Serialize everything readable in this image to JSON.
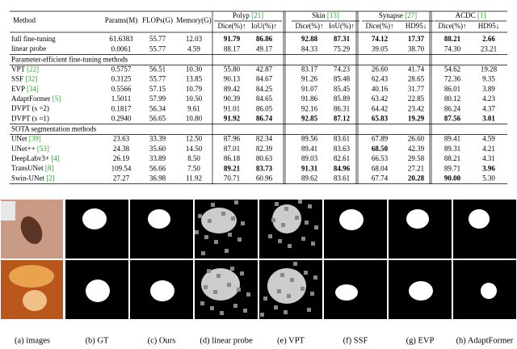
{
  "table": {
    "columns": [
      "Method",
      "Params(M)",
      "FLOPs(G)",
      "Memory(G)"
    ],
    "groups": [
      {
        "name": "Polyp",
        "cite": "[21]"
      },
      {
        "name": "Skin",
        "cite": "[13]"
      },
      {
        "name": "Synapse",
        "cite": "[27]"
      },
      {
        "name": "ACDC",
        "cite": "[1]"
      }
    ],
    "subheaders": [
      "Dice(%)↑",
      "IoU(%)↑",
      "Dice(%)↑",
      "IoU(%)↑",
      "Dice(%)↑",
      "HD95↓",
      "Dice(%)↑",
      "HD95↓"
    ],
    "sections": [
      {
        "rows": [
          {
            "name": "full fine-tuning",
            "cells": [
              "61.6383",
              "55.77",
              "12.03",
              "91.79",
              "86.86",
              "92.88",
              "87.31",
              "74.12",
              "17.37",
              "88.21",
              "2.66"
            ],
            "bold": [
              3,
              4,
              5,
              6,
              7,
              8,
              9,
              10
            ]
          },
          {
            "name": "linear probe",
            "cells": [
              "0.0061",
              "55.77",
              "4.59",
              "88.17",
              "49.17",
              "84.33",
              "75.29",
              "39.05",
              "38.70",
              "74.30",
              "23.21"
            ],
            "bold": []
          }
        ]
      },
      {
        "title": "Parameter-efficient fine-tuning methods",
        "rows": [
          {
            "name": "VPT",
            "cite": "[22]",
            "cells": [
              "0.5757",
              "56.51",
              "10.30",
              "55.80",
              "42.87",
              "83.17",
              "74.23",
              "26.60",
              "41.74",
              "54.62",
              "19.28"
            ],
            "bold": []
          },
          {
            "name": "SSF",
            "cite": "[32]",
            "cells": [
              "0.3125",
              "55.77",
              "13.85",
              "90.13",
              "84.67",
              "91.26",
              "85.48",
              "62.43",
              "28.65",
              "72.36",
              "9.35"
            ],
            "bold": []
          },
          {
            "name": "EVP",
            "cite": "[34]",
            "cells": [
              "0.5566",
              "57.15",
              "10.79",
              "89.42",
              "84.25",
              "91.07",
              "85.45",
              "40.16",
              "31.77",
              "86.01",
              "3.89"
            ],
            "bold": []
          },
          {
            "name": "AdaptFormer",
            "cite": "[5]",
            "cells": [
              "1.5011",
              "57.99",
              "10.50",
              "90.39",
              "84.65",
              "91.86",
              "85.89",
              "63.42",
              "22.85",
              "80.12",
              "4.23"
            ],
            "bold": []
          },
          {
            "name": "DVPT (s =2)",
            "cells": [
              "0.1817",
              "56.34",
              "9.61",
              "91.01",
              "86.05",
              "92.16",
              "86.31",
              "64.42",
              "23.42",
              "86.24",
              "4.37"
            ],
            "bold": []
          },
          {
            "name": "DVPT (s =1)",
            "cells": [
              "0.2940",
              "56.65",
              "10.80",
              "91.92",
              "86.74",
              "92.85",
              "87.12",
              "65.83",
              "19.29",
              "87.56",
              "3.01"
            ],
            "bold": [
              3,
              4,
              5,
              6,
              7,
              8,
              9,
              10
            ]
          }
        ]
      },
      {
        "title": "SOTA segmentation methods",
        "rows": [
          {
            "name": "UNet",
            "cite": "[39]",
            "cells": [
              "23.63",
              "33.39",
              "12.50",
              "87.96",
              "82.34",
              "89.56",
              "83.61",
              "67.89",
              "26.60",
              "89.41",
              "4.59"
            ],
            "bold": []
          },
          {
            "name": "UNet++",
            "cite": "[53]",
            "cells": [
              "24.38",
              "35.60",
              "14.50",
              "87.01",
              "82.39",
              "89.41",
              "83.63",
              "68.50",
              "42.39",
              "89.31",
              "4.21"
            ],
            "bold": [
              7
            ]
          },
          {
            "name": "DeepLabv3+",
            "cite": "[4]",
            "cells": [
              "26.19",
              "33.89",
              "8.50",
              "86.18",
              "80.63",
              "89.03",
              "82.61",
              "66.53",
              "29.58",
              "88.21",
              "4.31"
            ],
            "bold": []
          },
          {
            "name": "TransUNet",
            "cite": "[8]",
            "cells": [
              "109.54",
              "56.66",
              "7.50",
              "89.21",
              "83.73",
              "91.31",
              "84.96",
              "68.04",
              "27.21",
              "89.71",
              "3.96"
            ],
            "bold": [
              3,
              4,
              5,
              6,
              10
            ]
          },
          {
            "name": "Swin-UNet",
            "cite": "[2]",
            "cells": [
              "27.27",
              "36.98",
              "11.92",
              "70.71",
              "60.96",
              "89.62",
              "83.61",
              "67.74",
              "20.28",
              "90.00",
              "5.30"
            ],
            "bold": [
              8,
              9
            ]
          }
        ]
      }
    ]
  },
  "figure": {
    "labels": [
      "(a) images",
      "(b) GT",
      "(c) Ours",
      "(d) linear probe",
      "(e) VPT",
      "(f) SSF",
      "(g) EVP",
      "(h) AdaptFormer"
    ]
  }
}
